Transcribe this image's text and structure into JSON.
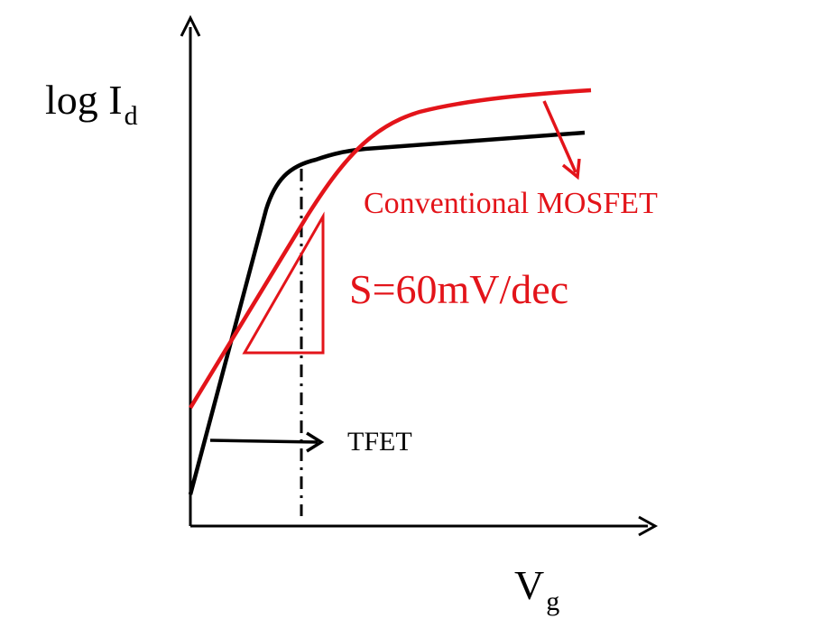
{
  "colors": {
    "background": "#ffffff",
    "axes": "#000000",
    "tfet_curve": "#000000",
    "mosfet_curve": "#e3141a"
  },
  "labels": {
    "y_axis_main": "log I",
    "y_axis_sub": "d",
    "x_axis_main": "V",
    "x_axis_sub": "g",
    "mosfet": "Conventional MOSFET",
    "slope": "S=60mV/dec",
    "tfet": "TFET"
  }
}
